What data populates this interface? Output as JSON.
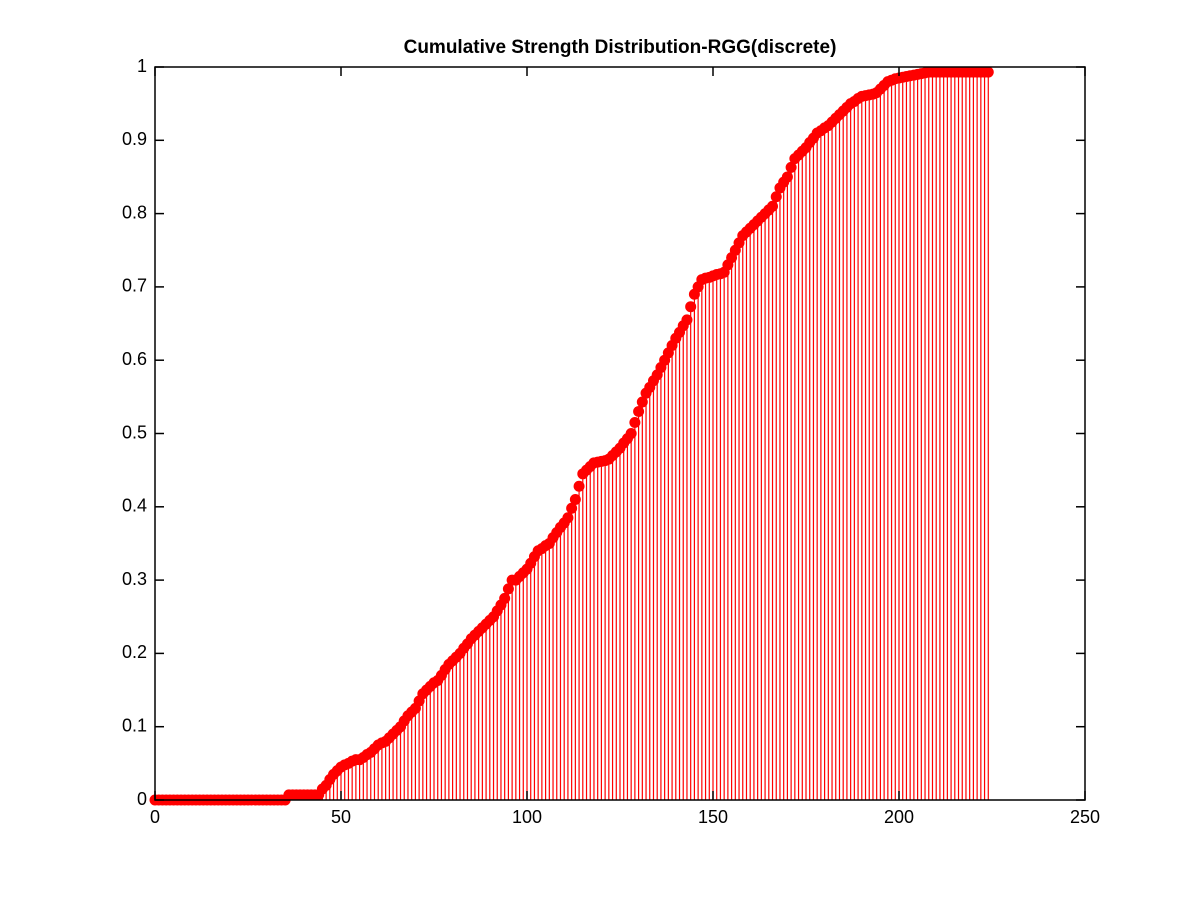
{
  "chart_data": {
    "type": "stem",
    "title": "Cumulative Strength Distribution-RGG(discrete)",
    "x": [
      0,
      1,
      2,
      3,
      4,
      5,
      6,
      7,
      8,
      9,
      10,
      11,
      12,
      13,
      14,
      15,
      16,
      17,
      18,
      19,
      20,
      21,
      22,
      23,
      24,
      25,
      26,
      27,
      28,
      29,
      30,
      31,
      32,
      33,
      34,
      35,
      36,
      37,
      38,
      39,
      40,
      41,
      42,
      43,
      44,
      45,
      46,
      47,
      48,
      49,
      50,
      51,
      52,
      53,
      54,
      55,
      56,
      57,
      58,
      59,
      60,
      61,
      62,
      63,
      64,
      65,
      66,
      67,
      68,
      69,
      70,
      71,
      72,
      73,
      74,
      75,
      76,
      77,
      78,
      79,
      80,
      81,
      82,
      83,
      84,
      85,
      86,
      87,
      88,
      89,
      90,
      91,
      92,
      93,
      94,
      95,
      96,
      97,
      98,
      99,
      100,
      101,
      102,
      103,
      104,
      105,
      106,
      107,
      108,
      109,
      110,
      111,
      112,
      113,
      114,
      115,
      116,
      117,
      118,
      119,
      120,
      121,
      122,
      123,
      124,
      125,
      126,
      127,
      128,
      129,
      130,
      131,
      132,
      133,
      134,
      135,
      136,
      137,
      138,
      139,
      140,
      141,
      142,
      143,
      144,
      145,
      146,
      147,
      148,
      149,
      150,
      151,
      152,
      153,
      154,
      155,
      156,
      157,
      158,
      159,
      160,
      161,
      162,
      163,
      164,
      165,
      166,
      167,
      168,
      169,
      170,
      171,
      172,
      173,
      174,
      175,
      176,
      177,
      178,
      179,
      180,
      181,
      182,
      183,
      184,
      185,
      186,
      187,
      188,
      189,
      190,
      191,
      192,
      193,
      194,
      195,
      196,
      197,
      198,
      199,
      200,
      201,
      202,
      203,
      204,
      205,
      206,
      207,
      208,
      209,
      210,
      211,
      212,
      213,
      214,
      215,
      216,
      217,
      218,
      219,
      220,
      221,
      222,
      223,
      224
    ],
    "values": [
      0,
      0,
      0,
      0,
      0,
      0,
      0,
      0,
      0,
      0,
      0,
      0,
      0,
      0,
      0,
      0,
      0,
      0,
      0,
      0,
      0,
      0,
      0,
      0,
      0,
      0,
      0,
      0,
      0,
      0,
      0,
      0,
      0,
      0,
      0,
      0,
      0.007,
      0.007,
      0.007,
      0.007,
      0.007,
      0.007,
      0.007,
      0.007,
      0.007,
      0.015,
      0.02,
      0.028,
      0.035,
      0.04,
      0.045,
      0.048,
      0.05,
      0.053,
      0.055,
      0.055,
      0.058,
      0.062,
      0.065,
      0.07,
      0.075,
      0.078,
      0.08,
      0.085,
      0.09,
      0.095,
      0.1,
      0.108,
      0.115,
      0.12,
      0.125,
      0.135,
      0.145,
      0.15,
      0.155,
      0.16,
      0.163,
      0.17,
      0.178,
      0.185,
      0.19,
      0.195,
      0.2,
      0.207,
      0.213,
      0.22,
      0.225,
      0.23,
      0.235,
      0.24,
      0.245,
      0.25,
      0.258,
      0.266,
      0.275,
      0.288,
      0.3,
      0.3,
      0.305,
      0.31,
      0.315,
      0.323,
      0.332,
      0.34,
      0.343,
      0.347,
      0.35,
      0.358,
      0.365,
      0.372,
      0.378,
      0.385,
      0.398,
      0.41,
      0.428,
      0.445,
      0.45,
      0.455,
      0.46,
      0.461,
      0.462,
      0.463,
      0.465,
      0.47,
      0.475,
      0.48,
      0.487,
      0.493,
      0.5,
      0.515,
      0.53,
      0.543,
      0.555,
      0.563,
      0.572,
      0.58,
      0.59,
      0.6,
      0.61,
      0.62,
      0.63,
      0.638,
      0.647,
      0.655,
      0.673,
      0.69,
      0.7,
      0.71,
      0.712,
      0.713,
      0.715,
      0.717,
      0.718,
      0.72,
      0.73,
      0.74,
      0.75,
      0.76,
      0.77,
      0.775,
      0.78,
      0.785,
      0.79,
      0.795,
      0.8,
      0.805,
      0.81,
      0.823,
      0.835,
      0.843,
      0.85,
      0.863,
      0.875,
      0.88,
      0.885,
      0.89,
      0.897,
      0.903,
      0.91,
      0.913,
      0.917,
      0.92,
      0.925,
      0.93,
      0.935,
      0.94,
      0.945,
      0.95,
      0.953,
      0.957,
      0.96,
      0.961,
      0.962,
      0.963,
      0.965,
      0.97,
      0.975,
      0.98,
      0.982,
      0.984,
      0.985,
      0.986,
      0.987,
      0.988,
      0.989,
      0.99,
      0.991,
      0.992,
      0.993,
      0.993,
      0.993,
      0.993,
      0.993,
      0.993,
      0.993,
      0.993,
      0.993,
      0.993,
      0.993,
      0.993,
      0.993,
      0.993,
      0.993,
      0.993,
      0.993
    ],
    "color": "#ff0000",
    "xlim": [
      0,
      250
    ],
    "xticks": [
      0,
      50,
      100,
      150,
      200,
      250
    ],
    "ylim": [
      0,
      1
    ],
    "yticks": [
      0,
      0.1,
      0.2,
      0.3,
      0.4,
      0.5,
      0.6,
      0.7,
      0.8,
      0.9,
      1
    ],
    "grid": false
  }
}
